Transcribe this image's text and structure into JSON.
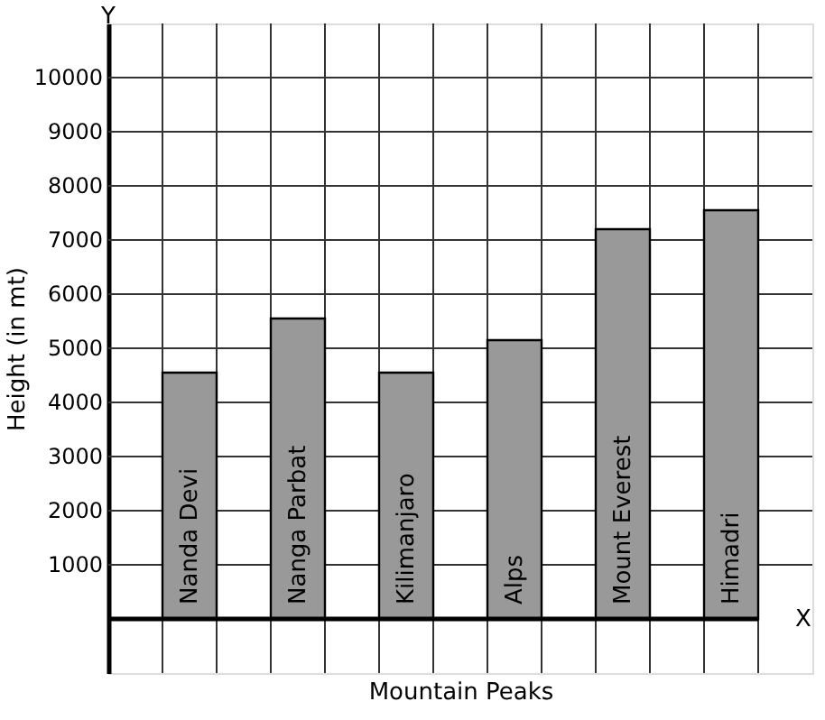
{
  "chart_data": {
    "type": "bar",
    "xlabel": "Mountain Peaks",
    "ylabel": "Height (in mt)",
    "categories": [
      "Nanda Devi",
      "Nanga Parbat",
      "Kilimanjaro",
      "Alps",
      "Mount Everest",
      "Himadri"
    ],
    "values": [
      4550,
      5550,
      4550,
      5150,
      7200,
      7550
    ],
    "color": "#999999",
    "ylim": [
      -1000,
      11000
    ],
    "yticks": [
      1000,
      2000,
      3000,
      4000,
      5000,
      6000,
      7000,
      8000,
      9000,
      10000
    ],
    "grid": true,
    "tick_labels": "y",
    "annotations": [
      "Y",
      "X"
    ]
  }
}
